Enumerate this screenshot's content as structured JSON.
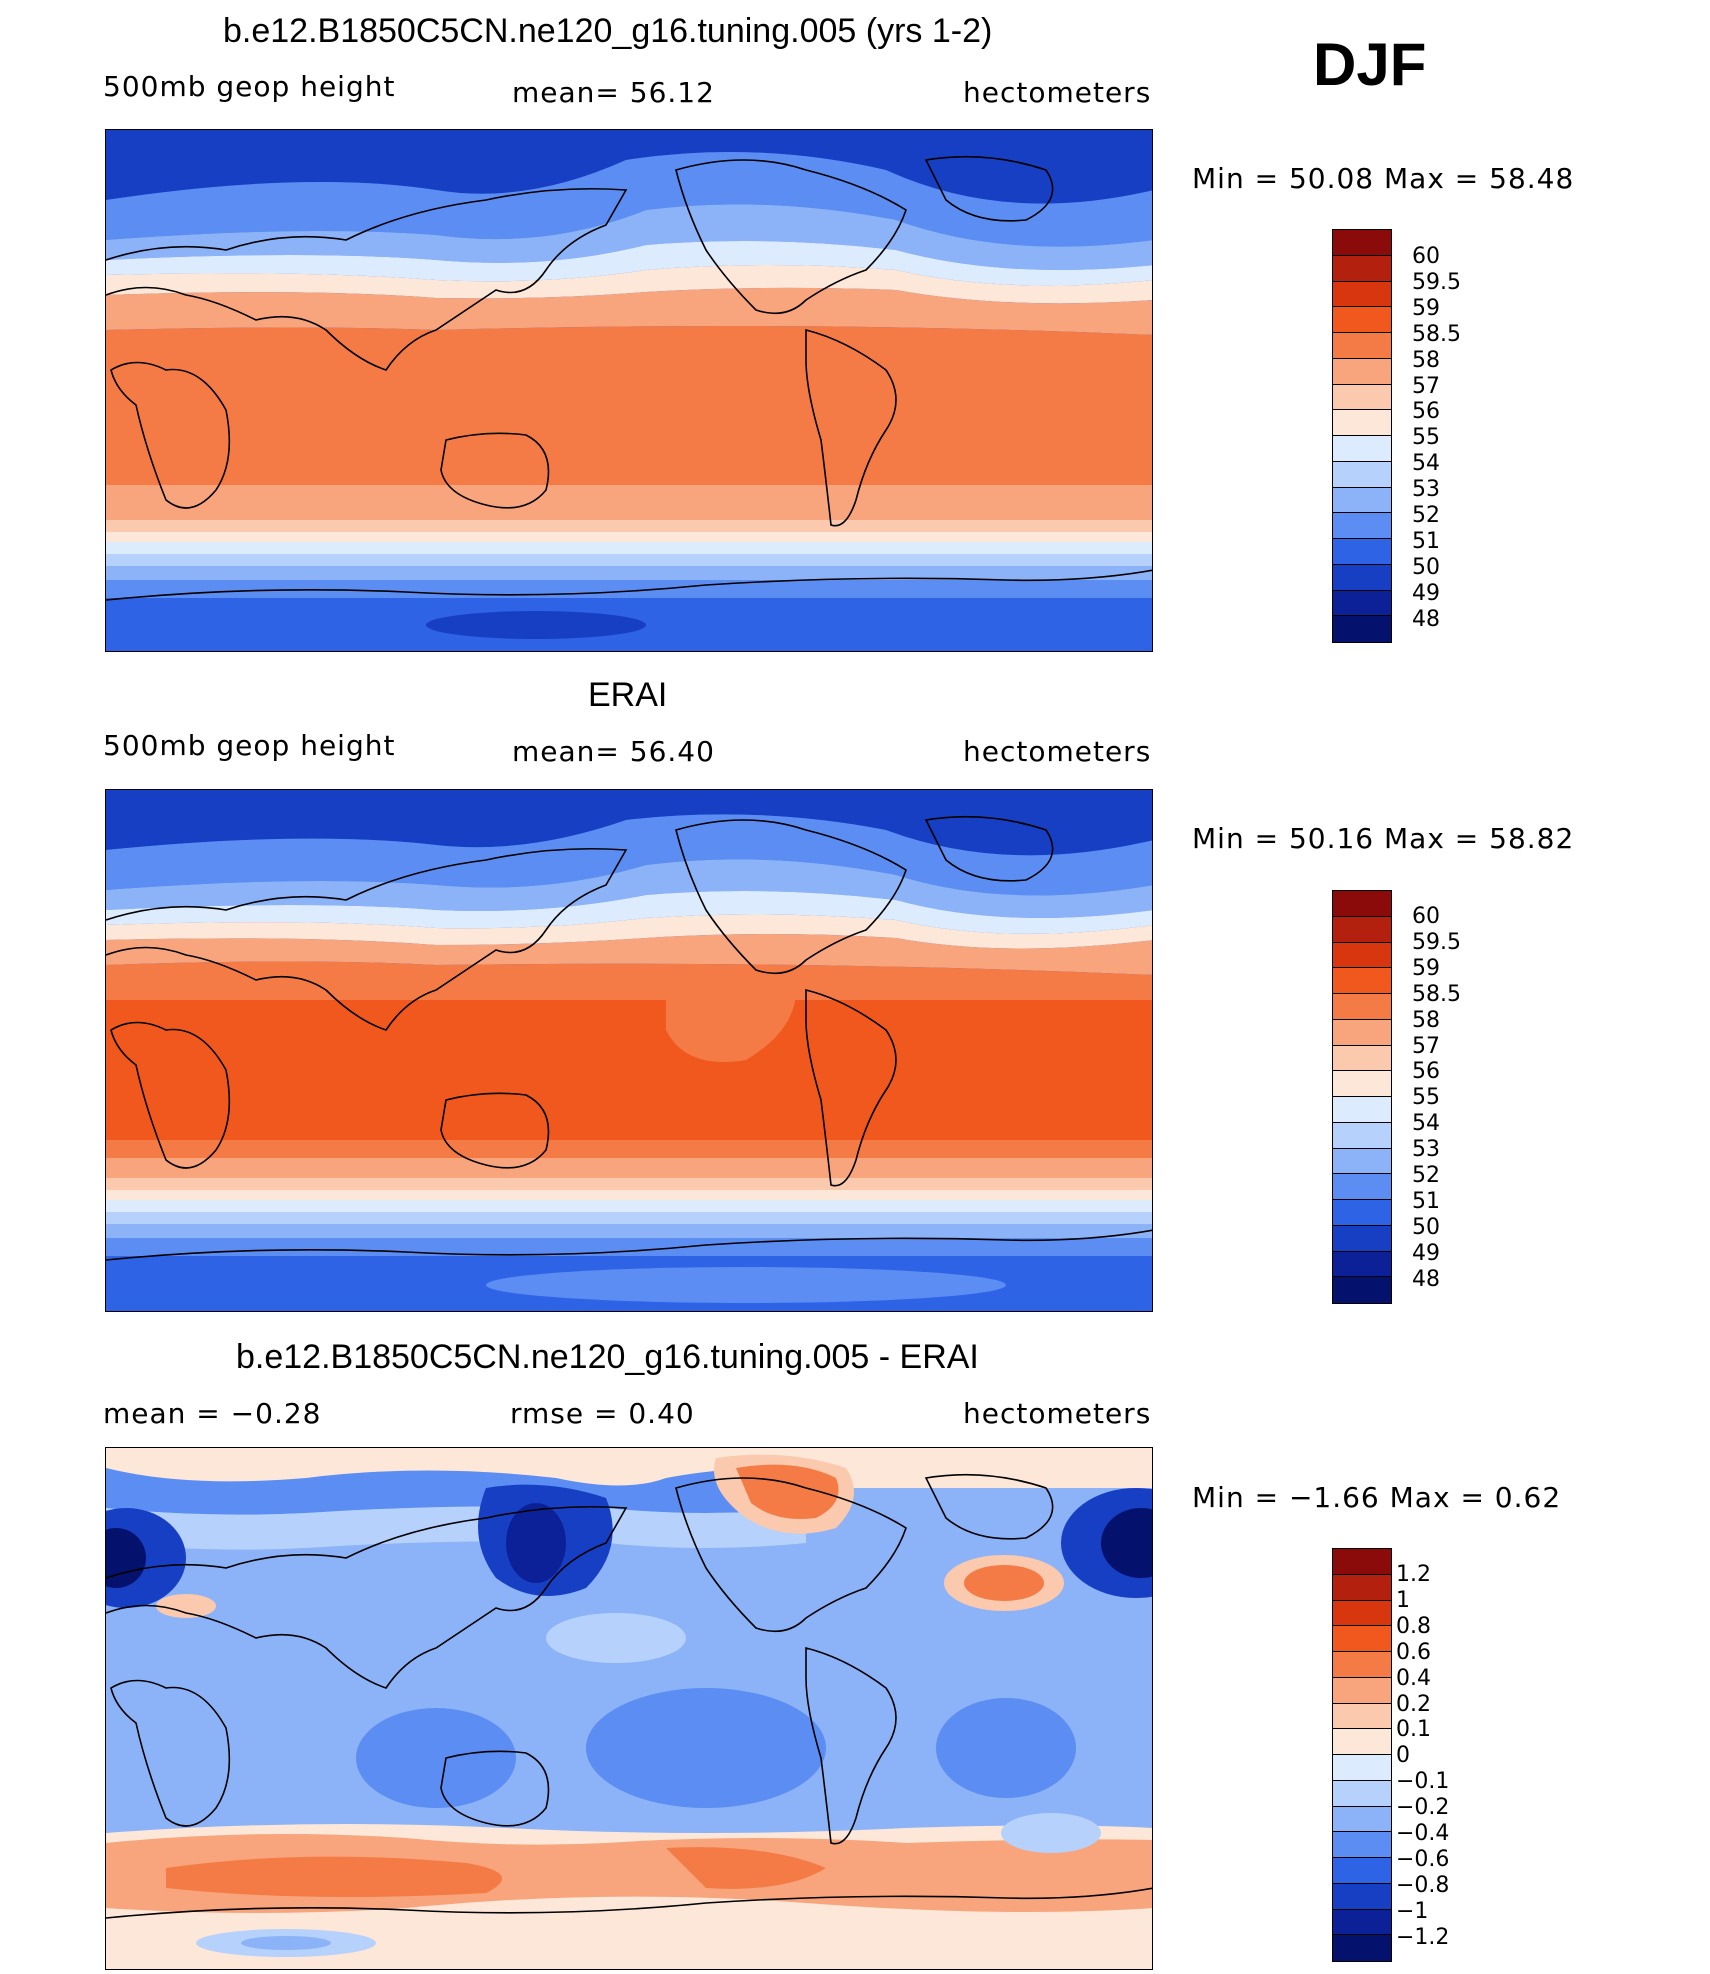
{
  "season": "DJF",
  "panels": [
    {
      "title": "b.e12.B1850C5CN.ne120_g16.tuning.005 (yrs 1-2)",
      "left_label": "500mb  geop  height",
      "mean_label": "mean=   56.12",
      "units": "hectometers",
      "min_max": "Min  =    50.08  Max  =    58.48",
      "colorbar_labels": [
        "60",
        "59.5",
        "59",
        "58.5",
        "58",
        "57",
        "56",
        "55",
        "54",
        "53",
        "52",
        "51",
        "50",
        "49",
        "48"
      ],
      "colorbar_colors": [
        "#8b0a0a",
        "#b3200e",
        "#d8360f",
        "#f0581e",
        "#f47b46",
        "#f8a47d",
        "#fbc9ad",
        "#fde7d8",
        "#dcebfd",
        "#b6d1fb",
        "#8cb3f8",
        "#5b8df2",
        "#2f63e6",
        "#173fc4",
        "#0c2198",
        "#04126e"
      ]
    },
    {
      "title": "ERAI",
      "left_label": "500mb  geop  height",
      "mean_label": "mean=   56.40",
      "units": "hectometers",
      "min_max": "Min  =    50.16  Max  =    58.82",
      "colorbar_labels": [
        "60",
        "59.5",
        "59",
        "58.5",
        "58",
        "57",
        "56",
        "55",
        "54",
        "53",
        "52",
        "51",
        "50",
        "49",
        "48"
      ],
      "colorbar_colors": [
        "#8b0a0a",
        "#b3200e",
        "#d8360f",
        "#f0581e",
        "#f47b46",
        "#f8a47d",
        "#fbc9ad",
        "#fde7d8",
        "#dcebfd",
        "#b6d1fb",
        "#8cb3f8",
        "#5b8df2",
        "#2f63e6",
        "#173fc4",
        "#0c2198",
        "#04126e"
      ]
    },
    {
      "title": "b.e12.B1850C5CN.ne120_g16.tuning.005 - ERAI",
      "left_label": "mean  =    −0.28",
      "mean_label": "rmse  =     0.40",
      "units": "hectometers",
      "min_max": "Min  =    −1.66  Max  =      0.62",
      "colorbar_labels": [
        "1.2",
        "1",
        "0.8",
        "0.6",
        "0.4",
        "0.2",
        "0.1",
        "0",
        "−0.1",
        "−0.2",
        "−0.4",
        "−0.6",
        "−0.8",
        "−1",
        "−1.2"
      ],
      "colorbar_colors": [
        "#8b0a0a",
        "#b3200e",
        "#d8360f",
        "#f0581e",
        "#f47b46",
        "#f8a47d",
        "#fbc9ad",
        "#fde7d8",
        "#dcebfd",
        "#b6d1fb",
        "#8cb3f8",
        "#5b8df2",
        "#2f63e6",
        "#173fc4",
        "#0c2198",
        "#04126e"
      ]
    }
  ]
}
